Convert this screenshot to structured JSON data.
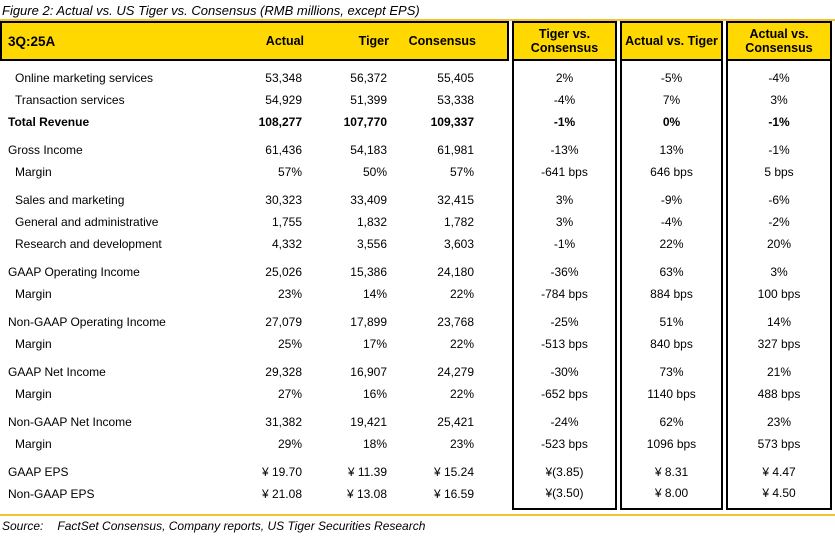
{
  "figure_title": "Figure 2: Actual vs. US Tiger vs. Consensus (RMB millions, except EPS)",
  "source": {
    "label": "Source:",
    "text": "FactSet Consensus, Company reports, US Tiger Securities Research"
  },
  "colors": {
    "header_bg": "#FFD800",
    "rule_gold": "#F1C232",
    "border": "#000000",
    "text": "#000000"
  },
  "table": {
    "period_label": "3Q:25A",
    "value_columns": [
      "Actual",
      "Tiger",
      "Consensus"
    ],
    "diff_columns": [
      "Tiger vs. Consensus",
      "Actual vs. Tiger",
      "Actual vs. Consensus"
    ],
    "rows": [
      {
        "label": "Online marketing services",
        "indent": true,
        "bold": false,
        "gap": true,
        "last": false,
        "values": [
          "53,348",
          "56,372",
          "55,405",
          "2%",
          "-5%",
          "-4%"
        ]
      },
      {
        "label": "Transaction services",
        "indent": true,
        "bold": false,
        "gap": false,
        "last": false,
        "values": [
          "54,929",
          "51,399",
          "53,338",
          "-4%",
          "7%",
          "3%"
        ]
      },
      {
        "label": "Total Revenue",
        "indent": false,
        "bold": true,
        "gap": false,
        "last": false,
        "values": [
          "108,277",
          "107,770",
          "109,337",
          "-1%",
          "0%",
          "-1%"
        ]
      },
      {
        "label": "Gross Income",
        "indent": false,
        "bold": false,
        "gap": true,
        "last": false,
        "values": [
          "61,436",
          "54,183",
          "61,981",
          "-13%",
          "13%",
          "-1%"
        ]
      },
      {
        "label": "Margin",
        "indent": true,
        "bold": false,
        "gap": false,
        "last": false,
        "values": [
          "57%",
          "50%",
          "57%",
          "-641 bps",
          "646 bps",
          "5 bps"
        ]
      },
      {
        "label": "Sales and marketing",
        "indent": true,
        "bold": false,
        "gap": true,
        "last": false,
        "values": [
          "30,323",
          "33,409",
          "32,415",
          "3%",
          "-9%",
          "-6%"
        ]
      },
      {
        "label": "General and administrative",
        "indent": true,
        "bold": false,
        "gap": false,
        "last": false,
        "values": [
          "1,755",
          "1,832",
          "1,782",
          "3%",
          "-4%",
          "-2%"
        ]
      },
      {
        "label": "Research and development",
        "indent": true,
        "bold": false,
        "gap": false,
        "last": false,
        "values": [
          "4,332",
          "3,556",
          "3,603",
          "-1%",
          "22%",
          "20%"
        ]
      },
      {
        "label": "GAAP Operating Income",
        "indent": false,
        "bold": false,
        "gap": true,
        "last": false,
        "values": [
          "25,026",
          "15,386",
          "24,180",
          "-36%",
          "63%",
          "3%"
        ]
      },
      {
        "label": "Margin",
        "indent": true,
        "bold": false,
        "gap": false,
        "last": false,
        "values": [
          "23%",
          "14%",
          "22%",
          "-784 bps",
          "884 bps",
          "100 bps"
        ]
      },
      {
        "label": "Non-GAAP Operating Income",
        "indent": false,
        "bold": false,
        "gap": true,
        "last": false,
        "values": [
          "27,079",
          "17,899",
          "23,768",
          "-25%",
          "51%",
          "14%"
        ]
      },
      {
        "label": "Margin",
        "indent": true,
        "bold": false,
        "gap": false,
        "last": false,
        "values": [
          "25%",
          "17%",
          "22%",
          "-513 bps",
          "840 bps",
          "327 bps"
        ]
      },
      {
        "label": "GAAP Net Income",
        "indent": false,
        "bold": false,
        "gap": true,
        "last": false,
        "values": [
          "29,328",
          "16,907",
          "24,279",
          "-30%",
          "73%",
          "21%"
        ]
      },
      {
        "label": "Margin",
        "indent": true,
        "bold": false,
        "gap": false,
        "last": false,
        "values": [
          "27%",
          "16%",
          "22%",
          "-652 bps",
          "1140 bps",
          "488 bps"
        ]
      },
      {
        "label": "Non-GAAP Net Income",
        "indent": false,
        "bold": false,
        "gap": true,
        "last": false,
        "values": [
          "31,382",
          "19,421",
          "25,421",
          "-24%",
          "62%",
          "23%"
        ]
      },
      {
        "label": "Margin",
        "indent": true,
        "bold": false,
        "gap": false,
        "last": false,
        "values": [
          "29%",
          "18%",
          "23%",
          "-523 bps",
          "1096 bps",
          "573 bps"
        ]
      },
      {
        "label": "GAAP EPS",
        "indent": false,
        "bold": false,
        "gap": true,
        "last": false,
        "values": [
          "¥ 19.70",
          "¥ 11.39",
          "¥ 15.24",
          "¥(3.85)",
          "¥ 8.31",
          "¥ 4.47"
        ]
      },
      {
        "label": "Non-GAAP EPS",
        "indent": false,
        "bold": false,
        "gap": false,
        "last": true,
        "values": [
          "¥ 21.08",
          "¥ 13.08",
          "¥ 16.59",
          "¥(3.50)",
          "¥ 8.00",
          "¥ 4.50"
        ]
      }
    ]
  }
}
